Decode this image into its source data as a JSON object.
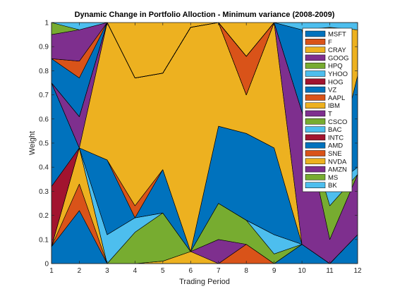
{
  "chart_data": {
    "type": "area",
    "title": "Dynamic Change in Portfolio Alloction - Minimum variance (2008-2009)",
    "xlabel": "Trading Period",
    "ylabel": "Weight",
    "xlim": [
      1,
      12
    ],
    "ylim": [
      0,
      1
    ],
    "x": [
      1,
      2,
      3,
      4,
      5,
      6,
      7,
      8,
      9,
      10,
      11,
      12
    ],
    "xticks": [
      "1",
      "2",
      "3",
      "4",
      "5",
      "6",
      "7",
      "8",
      "9",
      "10",
      "11",
      "12"
    ],
    "yticks": [
      "0",
      "0.1",
      "0.2",
      "0.3",
      "0.4",
      "0.5",
      "0.6",
      "0.7",
      "0.8",
      "0.9",
      "1"
    ],
    "legend_position": "top-right",
    "grid": false,
    "series": [
      {
        "name": "MSFT",
        "color": "#0072BD",
        "values": [
          0.07,
          0.22,
          0.0,
          0.0,
          0.0,
          0.0,
          0.0,
          0.0,
          0.0,
          0.08,
          0.0,
          0.12
        ]
      },
      {
        "name": "F",
        "color": "#D95319",
        "values": [
          0.0,
          0.11,
          0.0,
          0.0,
          0.0,
          0.0,
          0.0,
          0.08,
          0.0,
          0.0,
          0.0,
          0.0
        ]
      },
      {
        "name": "CRAY",
        "color": "#EDB120",
        "values": [
          0.0,
          0.15,
          0.0,
          0.0,
          0.01,
          0.05,
          0.0,
          0.0,
          0.0,
          0.0,
          0.0,
          0.0
        ]
      },
      {
        "name": "GOOG",
        "color": "#7E2F8E",
        "values": [
          0.0,
          0.0,
          0.0,
          0.0,
          0.0,
          0.0,
          0.1,
          0.0,
          0.0,
          0.0,
          0.0,
          0.0
        ]
      },
      {
        "name": "HPQ",
        "color": "#77AC30",
        "values": [
          0.0,
          0.0,
          0.0,
          0.13,
          0.2,
          0.0,
          0.15,
          0.1,
          0.04,
          0.0,
          0.0,
          0.0
        ]
      },
      {
        "name": "YHOO",
        "color": "#4DBEEE",
        "values": [
          0.0,
          0.0,
          0.12,
          0.06,
          0.0,
          0.0,
          0.0,
          0.0,
          0.08,
          0.0,
          0.0,
          0.0
        ]
      },
      {
        "name": "HOG",
        "color": "#A2142F",
        "values": [
          0.25,
          0.0,
          0.0,
          0.0,
          0.0,
          0.0,
          0.0,
          0.0,
          0.0,
          0.0,
          0.0,
          0.0
        ]
      },
      {
        "name": "VZ",
        "color": "#0072BD",
        "values": [
          0.43,
          0.0,
          0.31,
          0.0,
          0.18,
          0.0,
          0.32,
          0.36,
          0.36,
          0.0,
          0.0,
          0.0
        ]
      },
      {
        "name": "AAPL",
        "color": "#D95319",
        "values": [
          0.0,
          0.0,
          0.0,
          0.05,
          0.0,
          0.0,
          0.0,
          0.0,
          0.0,
          0.0,
          0.0,
          0.0
        ]
      },
      {
        "name": "IBM",
        "color": "#EDB120",
        "values": [
          0.0,
          0.0,
          0.57,
          0.53,
          0.4,
          0.93,
          0.43,
          0.16,
          0.52,
          0.0,
          0.0,
          0.0
        ]
      },
      {
        "name": "T",
        "color": "#7E2F8E",
        "values": [
          0.0,
          0.13,
          0.0,
          0.0,
          0.0,
          0.0,
          0.0,
          0.0,
          0.0,
          0.55,
          0.1,
          0.25
        ]
      },
      {
        "name": "CSCO",
        "color": "#77AC30",
        "values": [
          0.0,
          0.0,
          0.0,
          0.0,
          0.0,
          0.0,
          0.0,
          0.0,
          0.0,
          0.0,
          0.14,
          0.0
        ]
      },
      {
        "name": "BAC",
        "color": "#4DBEEE",
        "values": [
          0.0,
          0.0,
          0.0,
          0.0,
          0.0,
          0.0,
          0.0,
          0.0,
          0.0,
          0.0,
          0.07,
          0.03
        ]
      },
      {
        "name": "INTC",
        "color": "#A2142F",
        "values": [
          0.0,
          0.0,
          0.0,
          0.0,
          0.0,
          0.0,
          0.0,
          0.0,
          0.0,
          0.0,
          0.0,
          0.0
        ]
      },
      {
        "name": "AMD",
        "color": "#0072BD",
        "values": [
          0.1,
          0.16,
          0.0,
          0.0,
          0.0,
          0.0,
          0.0,
          0.0,
          0.0,
          0.34,
          0.0,
          0.38
        ]
      },
      {
        "name": "SNE",
        "color": "#D95319",
        "values": [
          0.0,
          0.07,
          0.0,
          0.0,
          0.0,
          0.0,
          0.0,
          0.16,
          0.0,
          0.0,
          0.0,
          0.0
        ]
      },
      {
        "name": "NVDA",
        "color": "#EDB120",
        "values": [
          0.0,
          0.0,
          0.0,
          0.0,
          0.0,
          0.0,
          0.0,
          0.0,
          0.0,
          0.0,
          0.67,
          0.19
        ]
      },
      {
        "name": "AMZN",
        "color": "#7E2F8E",
        "values": [
          0.1,
          0.13,
          0.0,
          0.0,
          0.0,
          0.0,
          0.0,
          0.0,
          0.0,
          0.0,
          0.0,
          0.0
        ]
      },
      {
        "name": "MS",
        "color": "#77AC30",
        "values": [
          0.05,
          0.0,
          0.0,
          0.0,
          0.0,
          0.0,
          0.0,
          0.0,
          0.0,
          0.0,
          0.0,
          0.0
        ]
      },
      {
        "name": "BK",
        "color": "#4DBEEE",
        "values": [
          0.0,
          0.03,
          0.0,
          0.0,
          0.0,
          0.0,
          0.0,
          0.0,
          0.0,
          0.03,
          0.02,
          0.03
        ]
      }
    ],
    "fill_color": "#EDB120",
    "axis_color": "#262626"
  }
}
